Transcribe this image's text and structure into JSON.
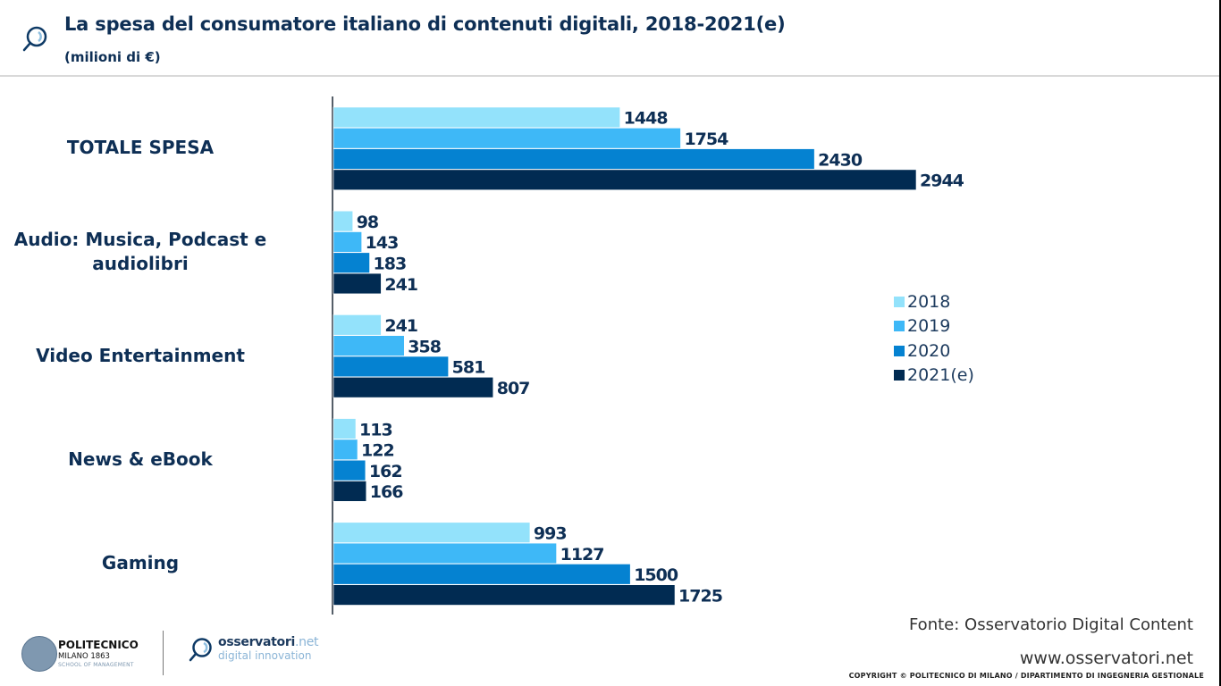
{
  "header": {
    "title": "La spesa del consumatore italiano di contenuti digitali, 2018-2021(e)",
    "subtitle": "(milioni di €)",
    "icon": "magnifier-icon"
  },
  "chart_data": {
    "type": "bar",
    "orientation": "horizontal",
    "title": "La spesa del consumatore italiano di contenuti digitali, 2018-2021(e)",
    "subtitle": "(milioni di €)",
    "xlabel": "",
    "ylabel": "",
    "xlim": [
      0,
      3200
    ],
    "grid": false,
    "legend_position": "right",
    "categories": [
      "TOTALE SPESA",
      "Audio: Musica, Podcast e audiolibri",
      "Video Entertainment",
      "News & eBook",
      "Gaming"
    ],
    "category_lines": [
      [
        "TOTALE SPESA"
      ],
      [
        "Audio: Musica, Podcast e",
        "audiolibri"
      ],
      [
        "Video Entertainment"
      ],
      [
        "News & eBook"
      ],
      [
        "Gaming"
      ]
    ],
    "series": [
      {
        "name": "2018",
        "color": "#93e2fb",
        "values": [
          1448,
          98,
          241,
          113,
          993
        ]
      },
      {
        "name": "2019",
        "color": "#3eb8f7",
        "values": [
          1754,
          143,
          358,
          122,
          1127
        ]
      },
      {
        "name": "2020",
        "color": "#0582d1",
        "values": [
          2430,
          183,
          581,
          162,
          1500
        ]
      },
      {
        "name": "2021(e)",
        "color": "#012b52",
        "values": [
          2944,
          241,
          807,
          166,
          1725
        ]
      }
    ]
  },
  "footer": {
    "source": "Fonte: Osservatorio Digital Content",
    "website": "www.osservatori.net",
    "copyright": "COPYRIGHT © POLITECNICO DI MILANO / DIPARTIMENTO DI INGEGNERIA GESTIONALE",
    "polimi": {
      "line1": "POLITECNICO",
      "line2": "MILANO 1863",
      "line3": "SCHOOL OF MANAGEMENT"
    },
    "osservatori": {
      "name": "osservatori",
      "tld": ".net",
      "tagline": "digital innovation"
    }
  }
}
